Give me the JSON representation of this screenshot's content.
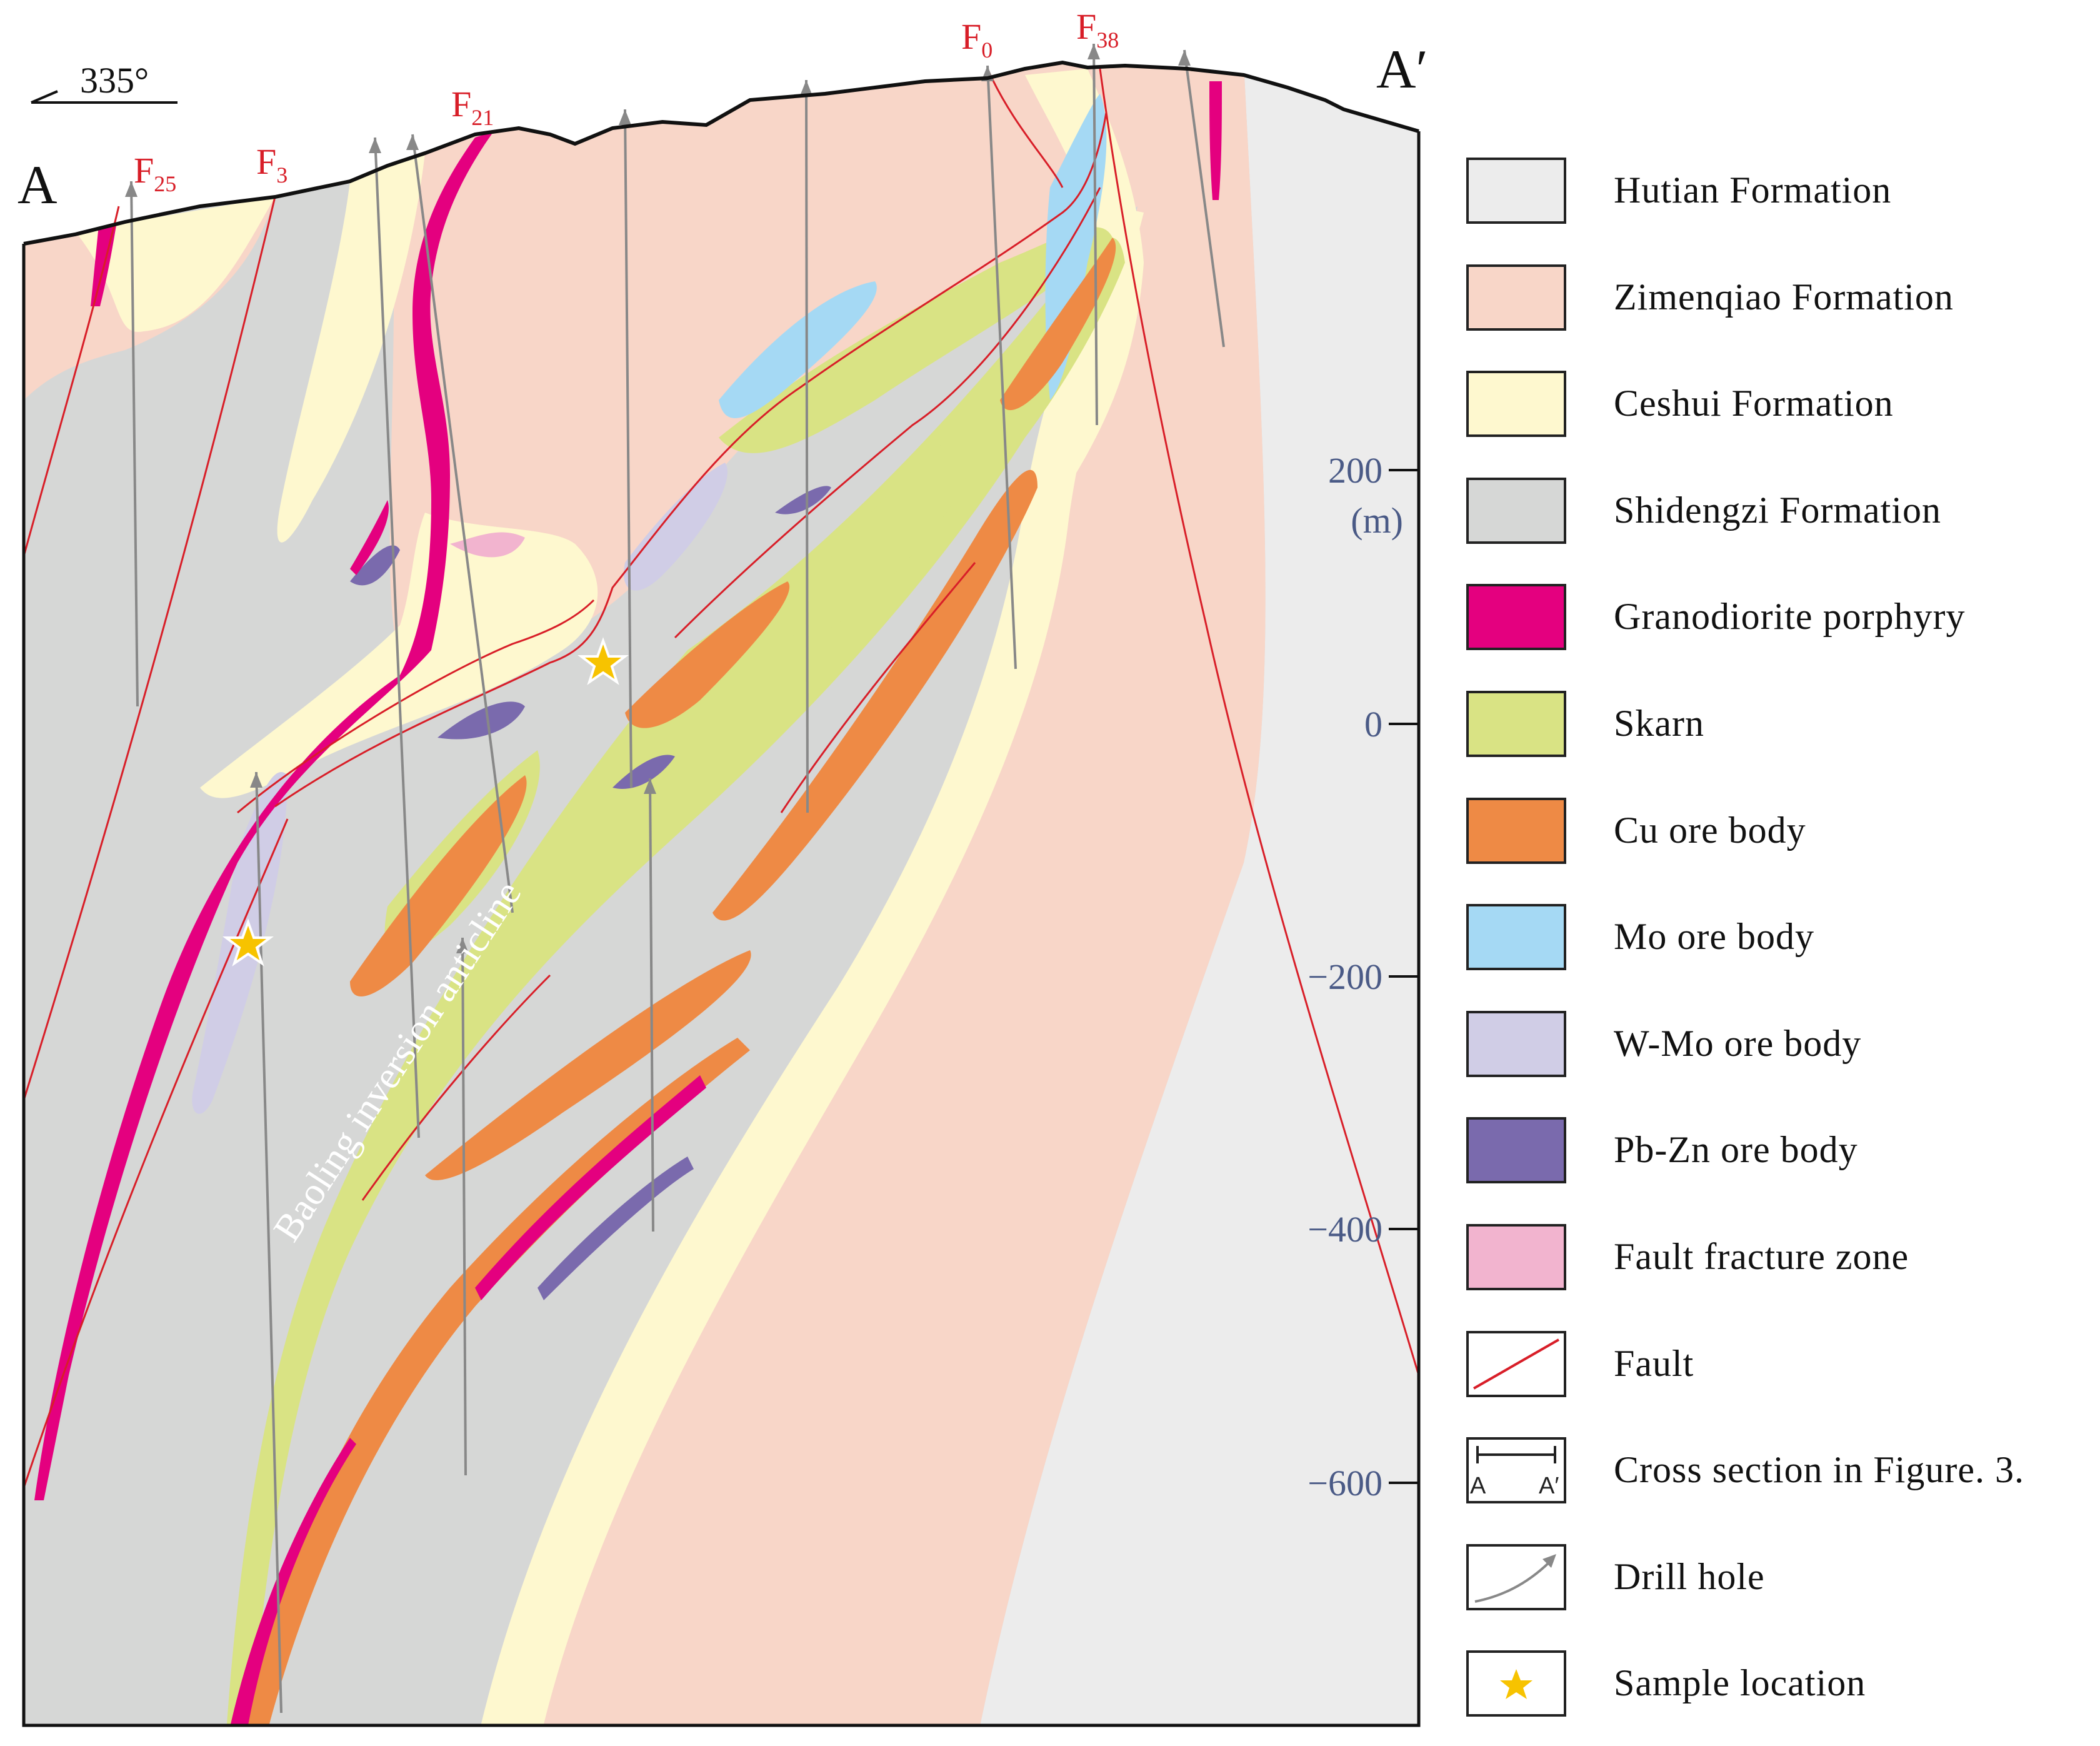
{
  "section": {
    "end_left": "A",
    "end_right": "A′",
    "orientation": "335°",
    "anticline_label": "Baoling inversion anticline"
  },
  "faults": [
    {
      "name": "F",
      "sub": "25"
    },
    {
      "name": "F",
      "sub": "3"
    },
    {
      "name": "F",
      "sub": "21"
    },
    {
      "name": "F",
      "sub": "0"
    },
    {
      "name": "F",
      "sub": "38"
    }
  ],
  "elevation_axis": {
    "unit": "(m)",
    "ticks": [
      "200",
      "0",
      "−200",
      "−400",
      "−600"
    ]
  },
  "legend": [
    {
      "label": "Hutian Formation",
      "color": "#ececec",
      "kind": "fill"
    },
    {
      "label": "Zimenqiao Formation",
      "color": "#f8d6c8",
      "kind": "fill"
    },
    {
      "label": "Ceshui Formation",
      "color": "#fef8cf",
      "kind": "fill"
    },
    {
      "label": "Shidengzi Formation",
      "color": "#d6d7d6",
      "kind": "fill"
    },
    {
      "label": "Granodiorite porphyry",
      "color": "#e4007f",
      "kind": "fill"
    },
    {
      "label": "Skarn",
      "color": "#d9e384",
      "kind": "fill"
    },
    {
      "label": "Cu ore body",
      "color": "#ee8a45",
      "kind": "fill"
    },
    {
      "label": "Mo ore body",
      "color": "#a5d9f4",
      "kind": "fill"
    },
    {
      "label": "W-Mo ore body",
      "color": "#d0cde6",
      "kind": "fill"
    },
    {
      "label": "Pb-Zn ore body",
      "color": "#7a6aad",
      "kind": "fill"
    },
    {
      "label": "Fault fracture zone",
      "color": "#f2b4cf",
      "kind": "fill"
    },
    {
      "label": "Fault",
      "color": "#d81e28",
      "kind": "fault-icon"
    },
    {
      "label": "Cross section in Figure. 3.",
      "color": "#222222",
      "kind": "section-icon",
      "ends": [
        "A",
        "A′"
      ]
    },
    {
      "label": "Drill hole",
      "color": "#888888",
      "kind": "drill-icon"
    },
    {
      "label": "Sample location",
      "color": "#f7c300",
      "kind": "star-icon"
    }
  ]
}
